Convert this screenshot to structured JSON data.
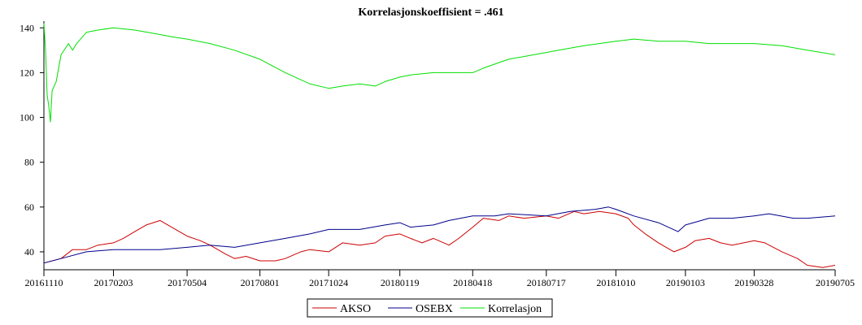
{
  "chart_data": {
    "type": "line",
    "title": "Korrelasjonskoeffisient =  .461",
    "xlabel": "",
    "ylabel": "",
    "ylim": [
      32,
      143
    ],
    "yticks": [
      40,
      60,
      80,
      100,
      120,
      140
    ],
    "xlim": [
      "20161110",
      "20190705"
    ],
    "x_tick_labels": [
      "20161110",
      "20170203",
      "20170504",
      "20170801",
      "20171024",
      "20180119",
      "20180418",
      "20180717",
      "20181010",
      "20190103",
      "20190328",
      "20190705"
    ],
    "grid": false,
    "legend_position": "bottom-center",
    "series": [
      {
        "name": "AKSO",
        "color": "#cc0000",
        "points": [
          [
            "20161110",
            35
          ],
          [
            "20161201",
            37
          ],
          [
            "20161215",
            41
          ],
          [
            "20170101",
            41
          ],
          [
            "20170115",
            43
          ],
          [
            "20170203",
            44
          ],
          [
            "20170215",
            46
          ],
          [
            "20170301",
            49
          ],
          [
            "20170315",
            52
          ],
          [
            "20170401",
            54
          ],
          [
            "20170415",
            51
          ],
          [
            "20170504",
            47
          ],
          [
            "20170520",
            45
          ],
          [
            "20170601",
            43
          ],
          [
            "20170620",
            39
          ],
          [
            "20170701",
            37
          ],
          [
            "20170715",
            38
          ],
          [
            "20170801",
            36
          ],
          [
            "20170820",
            36
          ],
          [
            "20170901",
            37
          ],
          [
            "20170920",
            40
          ],
          [
            "20171001",
            41
          ],
          [
            "20171024",
            40
          ],
          [
            "20171110",
            44
          ],
          [
            "20171201",
            43
          ],
          [
            "20171220",
            44
          ],
          [
            "20180101",
            47
          ],
          [
            "20180119",
            48
          ],
          [
            "20180201",
            46
          ],
          [
            "20180215",
            44
          ],
          [
            "20180301",
            46
          ],
          [
            "20180320",
            43
          ],
          [
            "20180401",
            46
          ],
          [
            "20180418",
            51
          ],
          [
            "20180501",
            55
          ],
          [
            "20180520",
            54
          ],
          [
            "20180601",
            56
          ],
          [
            "20180620",
            55
          ],
          [
            "20180717",
            56
          ],
          [
            "20180801",
            55
          ],
          [
            "20180820",
            58
          ],
          [
            "20180901",
            57
          ],
          [
            "20180920",
            58
          ],
          [
            "20181010",
            57
          ],
          [
            "20181025",
            55
          ],
          [
            "20181101",
            52
          ],
          [
            "20181115",
            48
          ],
          [
            "20181201",
            44
          ],
          [
            "20181220",
            40
          ],
          [
            "20190103",
            42
          ],
          [
            "20190115",
            45
          ],
          [
            "20190201",
            46
          ],
          [
            "20190215",
            44
          ],
          [
            "20190301",
            43
          ],
          [
            "20190328",
            45
          ],
          [
            "20190410",
            44
          ],
          [
            "20190501",
            40
          ],
          [
            "20190520",
            37
          ],
          [
            "20190601",
            34
          ],
          [
            "20190620",
            33
          ],
          [
            "20190705",
            34
          ]
        ]
      },
      {
        "name": "OSEBX",
        "color": "#00008b",
        "points": [
          [
            "20161110",
            35
          ],
          [
            "20161201",
            37
          ],
          [
            "20170101",
            40
          ],
          [
            "20170203",
            41
          ],
          [
            "20170301",
            41
          ],
          [
            "20170401",
            41
          ],
          [
            "20170504",
            42
          ],
          [
            "20170601",
            43
          ],
          [
            "20170701",
            42
          ],
          [
            "20170801",
            44
          ],
          [
            "20170901",
            46
          ],
          [
            "20171001",
            48
          ],
          [
            "20171024",
            50
          ],
          [
            "20171201",
            50
          ],
          [
            "20180101",
            52
          ],
          [
            "20180119",
            53
          ],
          [
            "20180201",
            51
          ],
          [
            "20180301",
            52
          ],
          [
            "20180320",
            54
          ],
          [
            "20180418",
            56
          ],
          [
            "20180515",
            56
          ],
          [
            "20180601",
            57
          ],
          [
            "20180717",
            56
          ],
          [
            "20180815",
            58
          ],
          [
            "20180915",
            59
          ],
          [
            "20181001",
            60
          ],
          [
            "20181010",
            59
          ],
          [
            "20181101",
            56
          ],
          [
            "20181201",
            53
          ],
          [
            "20181225",
            49
          ],
          [
            "20190103",
            52
          ],
          [
            "20190201",
            55
          ],
          [
            "20190301",
            55
          ],
          [
            "20190328",
            56
          ],
          [
            "20190415",
            57
          ],
          [
            "20190515",
            55
          ],
          [
            "20190601",
            55
          ],
          [
            "20190705",
            56
          ]
        ]
      },
      {
        "name": "Korrelasjon",
        "color": "#00e000",
        "points": [
          [
            "20161110",
            142
          ],
          [
            "20161112",
            130
          ],
          [
            "20161114",
            110
          ],
          [
            "20161116",
            105
          ],
          [
            "20161118",
            98
          ],
          [
            "20161120",
            112
          ],
          [
            "20161125",
            116
          ],
          [
            "20161201",
            128
          ],
          [
            "20161210",
            133
          ],
          [
            "20161215",
            130
          ],
          [
            "20161220",
            133
          ],
          [
            "20170101",
            138
          ],
          [
            "20170115",
            139
          ],
          [
            "20170203",
            140
          ],
          [
            "20170301",
            139
          ],
          [
            "20170401",
            137
          ],
          [
            "20170415",
            136
          ],
          [
            "20170504",
            135
          ],
          [
            "20170601",
            133
          ],
          [
            "20170701",
            130
          ],
          [
            "20170801",
            126
          ],
          [
            "20170901",
            120
          ],
          [
            "20171001",
            115
          ],
          [
            "20171024",
            113
          ],
          [
            "20171110",
            114
          ],
          [
            "20171201",
            115
          ],
          [
            "20171220",
            114
          ],
          [
            "20180101",
            116
          ],
          [
            "20180119",
            118
          ],
          [
            "20180201",
            119
          ],
          [
            "20180301",
            120
          ],
          [
            "20180418",
            120
          ],
          [
            "20180501",
            122
          ],
          [
            "20180601",
            126
          ],
          [
            "20180717",
            129
          ],
          [
            "20180801",
            130
          ],
          [
            "20180901",
            132
          ],
          [
            "20181010",
            134
          ],
          [
            "20181101",
            135
          ],
          [
            "20181201",
            134
          ],
          [
            "20190103",
            134
          ],
          [
            "20190201",
            133
          ],
          [
            "20190328",
            133
          ],
          [
            "20190501",
            132
          ],
          [
            "20190601",
            130
          ],
          [
            "20190705",
            128
          ]
        ]
      }
    ]
  }
}
